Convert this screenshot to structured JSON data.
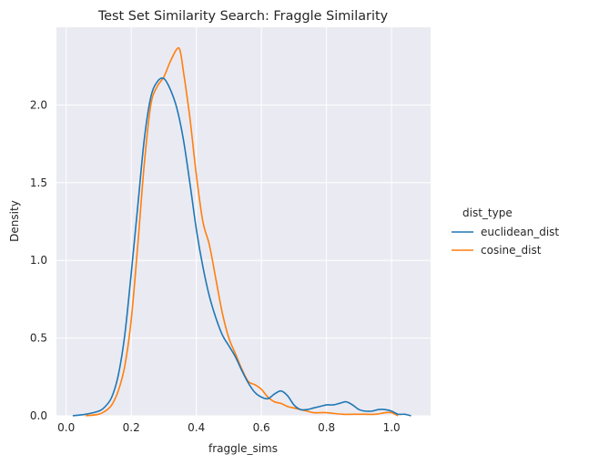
{
  "chart_data": {
    "type": "line",
    "title": "Test Set Similarity Search: Fraggle Similarity",
    "xlabel": "fraggle_sims",
    "ylabel": "Density",
    "xlim": [
      -0.03,
      1.12
    ],
    "ylim": [
      0,
      2.5
    ],
    "x_ticks": [
      "0.0",
      "0.2",
      "0.4",
      "0.6",
      "0.8",
      "1.0"
    ],
    "y_ticks": [
      "0.0",
      "0.5",
      "1.0",
      "1.5",
      "2.0"
    ],
    "grid": true,
    "legend": {
      "title": "dist_type",
      "placement": "right"
    },
    "series": [
      {
        "name": "euclidean_dist",
        "color": "#1f77b4",
        "x": [
          0.02,
          0.06,
          0.1,
          0.12,
          0.14,
          0.16,
          0.18,
          0.2,
          0.22,
          0.24,
          0.26,
          0.28,
          0.3,
          0.32,
          0.34,
          0.36,
          0.38,
          0.4,
          0.42,
          0.44,
          0.46,
          0.48,
          0.5,
          0.52,
          0.54,
          0.56,
          0.58,
          0.6,
          0.62,
          0.64,
          0.66,
          0.68,
          0.7,
          0.72,
          0.74,
          0.76,
          0.78,
          0.8,
          0.82,
          0.84,
          0.86,
          0.88,
          0.9,
          0.92,
          0.94,
          0.96,
          0.98,
          1.0,
          1.02,
          1.04,
          1.06
        ],
        "y": [
          0.0,
          0.01,
          0.03,
          0.06,
          0.12,
          0.26,
          0.52,
          0.92,
          1.35,
          1.78,
          2.05,
          2.15,
          2.17,
          2.1,
          1.98,
          1.78,
          1.5,
          1.2,
          0.96,
          0.77,
          0.63,
          0.52,
          0.45,
          0.38,
          0.29,
          0.21,
          0.15,
          0.12,
          0.11,
          0.14,
          0.16,
          0.13,
          0.07,
          0.04,
          0.04,
          0.05,
          0.06,
          0.07,
          0.07,
          0.08,
          0.09,
          0.07,
          0.04,
          0.03,
          0.03,
          0.04,
          0.04,
          0.03,
          0.01,
          0.01,
          0.0
        ]
      },
      {
        "name": "cosine_dist",
        "color": "#ff7f0e",
        "x": [
          0.06,
          0.1,
          0.12,
          0.14,
          0.16,
          0.18,
          0.2,
          0.22,
          0.24,
          0.26,
          0.28,
          0.3,
          0.32,
          0.34,
          0.35,
          0.36,
          0.38,
          0.4,
          0.42,
          0.44,
          0.46,
          0.48,
          0.5,
          0.52,
          0.54,
          0.56,
          0.58,
          0.6,
          0.62,
          0.64,
          0.66,
          0.68,
          0.7,
          0.72,
          0.74,
          0.76,
          0.78,
          0.8,
          0.85,
          0.9,
          0.95,
          0.98,
          1.0,
          1.02
        ],
        "y": [
          0.0,
          0.01,
          0.03,
          0.07,
          0.16,
          0.32,
          0.62,
          1.1,
          1.62,
          2.0,
          2.12,
          2.18,
          2.28,
          2.36,
          2.35,
          2.22,
          1.92,
          1.55,
          1.25,
          1.1,
          0.88,
          0.66,
          0.5,
          0.4,
          0.3,
          0.22,
          0.2,
          0.17,
          0.12,
          0.09,
          0.08,
          0.06,
          0.05,
          0.04,
          0.03,
          0.02,
          0.02,
          0.02,
          0.01,
          0.01,
          0.01,
          0.02,
          0.02,
          0.0
        ]
      }
    ]
  }
}
